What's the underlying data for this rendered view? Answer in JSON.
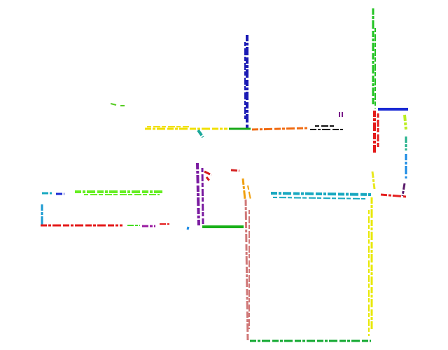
{
  "scene": {
    "background": "#ffffff",
    "description_visible_text": "",
    "segments": [
      {
        "name": "segment-blue-vertical-top",
        "color": "#1a1ab4"
      },
      {
        "name": "segment-green-vertical-top-right",
        "color": "#22c322"
      },
      {
        "name": "segment-yellow-horizontal-center",
        "color": "#f0e000"
      },
      {
        "name": "segment-green-horizontal-center",
        "color": "#18a818"
      },
      {
        "name": "segment-orange-horizontal-center",
        "color": "#f06a10"
      },
      {
        "name": "segment-black-horizontal-center",
        "color": "#111111"
      },
      {
        "name": "segment-purple-small-top",
        "color": "#7a1a8a"
      },
      {
        "name": "segment-teal-small-center",
        "color": "#1aa89a"
      },
      {
        "name": "segment-lightgreen-small-top-left",
        "color": "#55cc22"
      },
      {
        "name": "segment-red-vertical-right",
        "color": "#e41a1a"
      },
      {
        "name": "segment-blue-horizontal-right",
        "color": "#1a2ad4"
      },
      {
        "name": "segment-lime-small-right",
        "color": "#bbee22"
      },
      {
        "name": "segment-teal-vertical-right",
        "color": "#22b08a"
      },
      {
        "name": "segment-skyblue-vertical-right",
        "color": "#1a8ae4"
      },
      {
        "name": "segment-darkpurple-small-right",
        "color": "#5a1a6a"
      },
      {
        "name": "segment-red-small-right",
        "color": "#e42020"
      },
      {
        "name": "segment-yellow-small-right",
        "color": "#e8e820"
      },
      {
        "name": "segment-cyan-horizontal-right",
        "color": "#18a8c0"
      },
      {
        "name": "segment-yellow-vertical-bottom-right",
        "color": "#e8e800"
      },
      {
        "name": "segment-green-horizontal-bottom",
        "color": "#12a830"
      },
      {
        "name": "segment-pink-vertical-bottom",
        "color": "#d07878"
      },
      {
        "name": "segment-orange-vertical-center",
        "color": "#f0a010"
      },
      {
        "name": "segment-red-small-center",
        "color": "#d42020"
      },
      {
        "name": "segment-purple-vertical-center",
        "color": "#7a1aa0"
      },
      {
        "name": "segment-red-small-center-2",
        "color": "#d41a1a"
      },
      {
        "name": "segment-green-horizontal-center-low",
        "color": "#18b018"
      },
      {
        "name": "segment-lightgreen-horizontal-left",
        "color": "#66ee22"
      },
      {
        "name": "segment-blue-small-left",
        "color": "#1a2ad4"
      },
      {
        "name": "segment-cyan-small-left",
        "color": "#18a8c0"
      },
      {
        "name": "segment-cyan-vertical-left",
        "color": "#1a9ad0"
      },
      {
        "name": "segment-red-horizontal-left",
        "color": "#e41a1a"
      },
      {
        "name": "segment-green-small-left-low",
        "color": "#44dd22"
      },
      {
        "name": "segment-purple-small-left-low",
        "color": "#9a1aa0"
      },
      {
        "name": "segment-red-small-left-low",
        "color": "#e41a1a"
      },
      {
        "name": "segment-blue-dot-center",
        "color": "#1a8ae4"
      }
    ]
  }
}
